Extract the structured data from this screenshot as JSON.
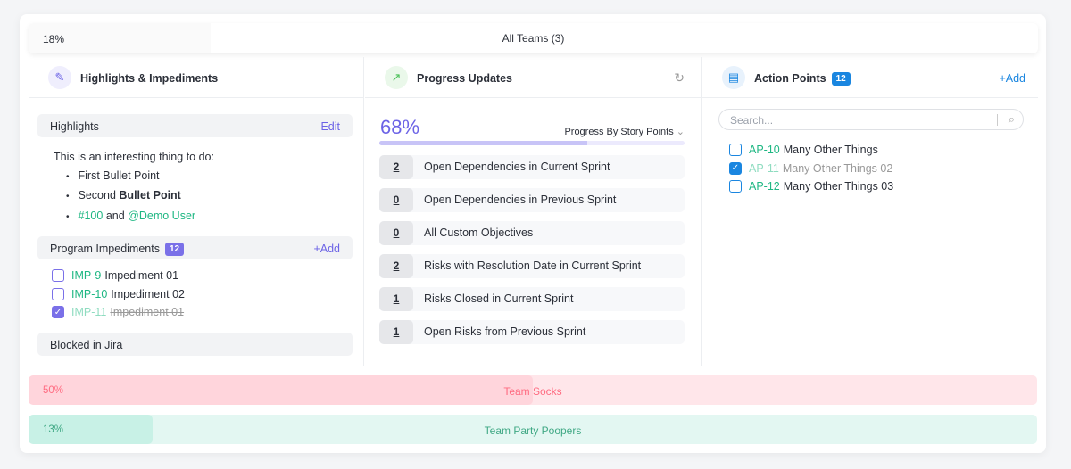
{
  "top": {
    "percent_label": "18%",
    "percent": 18,
    "title": "All Teams (3)"
  },
  "highlights_panel": {
    "title": "Highlights & Impediments",
    "icon": "pen-icon",
    "highlights": {
      "label": "Highlights",
      "edit": "Edit",
      "intro": "This is an interesting thing to do:",
      "bullets": {
        "b1": "First Bullet Point",
        "b2_plain": "Second",
        "b2_bold": "Bullet Point",
        "b3_tag": "#100",
        "b3_and": "and",
        "b3_user": "@Demo User"
      }
    },
    "impediments": {
      "label": "Program Impediments",
      "count": "12",
      "add": "+Add",
      "items": [
        {
          "key": "IMP-9",
          "text": "Impediment 01",
          "done": false
        },
        {
          "key": "IMP-10",
          "text": "Impediment 02",
          "done": false
        },
        {
          "key": "IMP-11",
          "text": "Impediment 01",
          "done": true
        }
      ]
    },
    "blocked": {
      "label": "Blocked in Jira"
    }
  },
  "progress_panel": {
    "title": "Progress Updates",
    "icon": "trend-icon",
    "refresh_icon": "refresh-icon",
    "percent_label": "68%",
    "percent": 68,
    "mode": "Progress By Story Points",
    "rows": [
      {
        "n": "2",
        "t": "Open Dependencies in Current Sprint"
      },
      {
        "n": "0",
        "t": "Open Dependencies in Previous Sprint"
      },
      {
        "n": "0",
        "t": "All Custom Objectives"
      },
      {
        "n": "2",
        "t": "Risks with Resolution Date in Current Sprint"
      },
      {
        "n": "1",
        "t": "Risks Closed in Current Sprint"
      },
      {
        "n": "1",
        "t": "Open Risks from Previous Sprint"
      }
    ]
  },
  "action_panel": {
    "title": "Action Points",
    "icon": "notepad-icon",
    "count": "12",
    "add": "+Add",
    "search_placeholder": "Search...",
    "items": [
      {
        "key": "AP-10",
        "text": "Many Other Things",
        "done": false
      },
      {
        "key": "AP-11",
        "text": "Many Other Things 02",
        "done": true
      },
      {
        "key": "AP-12",
        "text": "Many Other Things 03",
        "done": false
      }
    ]
  },
  "teams": [
    {
      "name": "Team Socks",
      "percent_label": "50%",
      "percent": 50,
      "color": "#ff6b81"
    },
    {
      "name": "Team Party Poopers",
      "percent_label": "13%",
      "percent": 13,
      "color": "#3fb28c"
    }
  ],
  "colors": {
    "accent": "#6c63e6",
    "green": "#1fb783",
    "blue": "#1a86e0"
  }
}
